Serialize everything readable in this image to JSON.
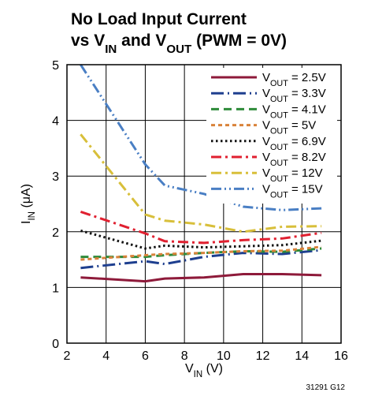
{
  "chart_data": {
    "type": "line",
    "title": {
      "line1": "No Load Input Current",
      "line2": [
        {
          "t": "vs V"
        },
        {
          "t": "IN",
          "sub": true
        },
        {
          "t": " and V"
        },
        {
          "t": "OUT",
          "sub": true
        },
        {
          "t": " (PWM = 0V)"
        }
      ]
    },
    "xlabel": [
      {
        "t": "V"
      },
      {
        "t": "IN",
        "sub": true
      },
      {
        "t": " (V)"
      }
    ],
    "ylabel": [
      {
        "t": "I"
      },
      {
        "t": "IN",
        "sub": true
      },
      {
        "t": " (μA)"
      }
    ],
    "xlim": [
      2,
      16
    ],
    "ylim": [
      0,
      5
    ],
    "xticks": [
      2,
      4,
      6,
      8,
      10,
      12,
      14,
      16
    ],
    "yticks": [
      0,
      1,
      2,
      3,
      4,
      5
    ],
    "grid": true,
    "legend_position": "top-right",
    "figure_code": "31291 G12",
    "series": [
      {
        "name": "2.5V",
        "color": "#8e1a3a",
        "dash": "solid",
        "x": [
          2.7,
          6,
          7,
          9,
          11,
          13,
          15
        ],
        "y": [
          1.18,
          1.11,
          1.16,
          1.18,
          1.24,
          1.24,
          1.22
        ]
      },
      {
        "name": "3.3V",
        "color": "#1e3f8f",
        "dash": "longdash-dot",
        "x": [
          2.7,
          6,
          7,
          9,
          11,
          13,
          15
        ],
        "y": [
          1.35,
          1.47,
          1.42,
          1.55,
          1.62,
          1.6,
          1.67
        ]
      },
      {
        "name": "4.1V",
        "color": "#2e8b3a",
        "dash": "dash",
        "x": [
          2.7,
          6,
          7,
          9,
          11,
          13,
          15
        ],
        "y": [
          1.55,
          1.55,
          1.58,
          1.62,
          1.65,
          1.64,
          1.7
        ]
      },
      {
        "name": "5V",
        "color": "#d9823a",
        "dash": "dot",
        "x": [
          2.7,
          6,
          7,
          9,
          11,
          13,
          15
        ],
        "y": [
          1.5,
          1.58,
          1.6,
          1.62,
          1.65,
          1.66,
          1.73
        ]
      },
      {
        "name": "6.9V",
        "color": "#111111",
        "dash": "finedot",
        "x": [
          2.7,
          6,
          7,
          9,
          11,
          13,
          15
        ],
        "y": [
          2.02,
          1.7,
          1.75,
          1.72,
          1.74,
          1.76,
          1.84
        ]
      },
      {
        "name": "8.2V",
        "color": "#e02030",
        "dash": "dashdot",
        "x": [
          2.7,
          6,
          7,
          9,
          11,
          13,
          15
        ],
        "y": [
          2.36,
          1.97,
          1.83,
          1.8,
          1.85,
          1.88,
          1.98
        ]
      },
      {
        "name": "12V",
        "color": "#d8bf3a",
        "dash": "dashdot",
        "x": [
          2.7,
          6,
          7,
          9,
          11,
          13,
          15
        ],
        "y": [
          3.75,
          2.31,
          2.2,
          2.13,
          2.0,
          2.09,
          2.1
        ]
      },
      {
        "name": "15V",
        "color": "#4a7fc4",
        "dash": "dashdotdot",
        "x": [
          2.7,
          6,
          7,
          9,
          11,
          13,
          15
        ],
        "y": [
          5.0,
          3.21,
          2.83,
          2.68,
          2.45,
          2.39,
          2.42
        ]
      }
    ],
    "legend_prefix": [
      {
        "t": "V"
      },
      {
        "t": "OUT",
        "sub": true
      },
      {
        "t": " = "
      }
    ]
  }
}
